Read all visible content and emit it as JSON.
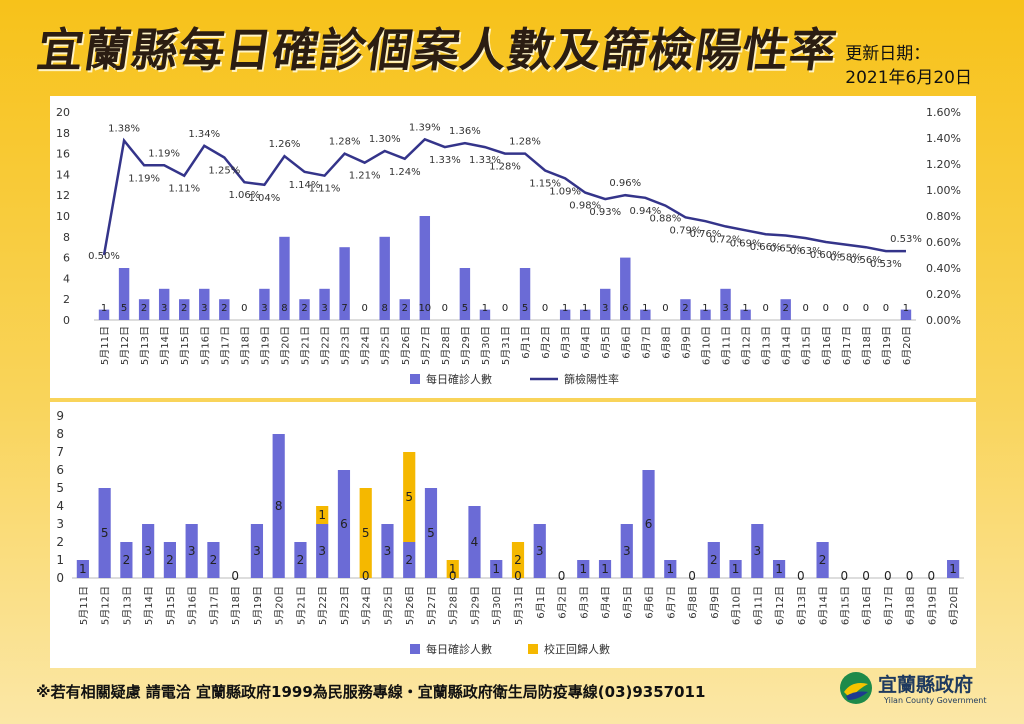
{
  "header": {
    "title": "宜蘭縣每日確診個案人數及篩檢陽性率",
    "update_label": "更新日期：",
    "update_date": "2021年6月20日"
  },
  "footer": {
    "note": "※若有相關疑慮 請電洽  宜蘭縣政府1999為民服務專線・宜蘭縣政府衛生局防疫專線(03)9357011"
  },
  "logo": {
    "name": "宜蘭縣政府",
    "english": "Yilan County Government"
  },
  "colors": {
    "bar": "#6b6bd6",
    "line": "#34348a",
    "correction": "#f5b800"
  },
  "chart_data": [
    {
      "type": "bar",
      "categories": [
        "5月11日",
        "5月12日",
        "5月13日",
        "5月14日",
        "5月15日",
        "5月16日",
        "5月17日",
        "5月18日",
        "5月19日",
        "5月20日",
        "5月21日",
        "5月22日",
        "5月23日",
        "5月24日",
        "5月25日",
        "5月26日",
        "5月27日",
        "5月28日",
        "5月29日",
        "5月30日",
        "5月31日",
        "6月1日",
        "6月2日",
        "6月3日",
        "6月4日",
        "6月5日",
        "6月6日",
        "6月7日",
        "6月8日",
        "6月9日",
        "6月10日",
        "6月11日",
        "6月12日",
        "6月13日",
        "6月14日",
        "6月15日",
        "6月16日",
        "6月17日",
        "6月18日",
        "6月19日",
        "6月20日"
      ],
      "series": [
        {
          "name": "每日確診人數",
          "type": "bar",
          "axis": "left",
          "values": [
            1,
            5,
            2,
            3,
            2,
            3,
            2,
            0,
            3,
            8,
            2,
            3,
            7,
            0,
            8,
            2,
            10,
            0,
            5,
            1,
            0,
            5,
            0,
            1,
            1,
            3,
            6,
            1,
            0,
            2,
            1,
            3,
            1,
            0,
            2,
            0,
            0,
            0,
            0,
            0,
            1
          ]
        },
        {
          "name": "篩檢陽性率",
          "type": "line",
          "axis": "right",
          "values": [
            0.5,
            1.38,
            1.19,
            1.19,
            1.11,
            1.34,
            1.25,
            1.06,
            1.04,
            1.26,
            1.14,
            1.11,
            1.28,
            1.21,
            1.3,
            1.24,
            1.39,
            1.33,
            1.36,
            1.33,
            1.28,
            1.28,
            1.15,
            1.09,
            0.98,
            0.93,
            0.96,
            0.94,
            0.88,
            0.79,
            0.76,
            0.72,
            0.69,
            0.66,
            0.65,
            0.63,
            0.6,
            0.58,
            0.56,
            0.53,
            0.53
          ],
          "labels": [
            "0.50%",
            "1.38%",
            "1.19%",
            "1.19%",
            "1.11%",
            "1.34%",
            "1.25%",
            "1.06%",
            "1.04%",
            "1.26%",
            "1.14%",
            "1.11%",
            "1.28%",
            "1.21%",
            "1.30%",
            "1.24%",
            "1.39%",
            "1.33%",
            "1.36%",
            "1.33%",
            "1.28%",
            "1.28%",
            "1.15%",
            "1.09%",
            "0.98%",
            "0.93%",
            "0.96%",
            "0.94%",
            "0.88%",
            "0.79%",
            "0.76%",
            "0.72%",
            "0.69%",
            "0.66%",
            "0.65%",
            "0.63%",
            "0.60%",
            "0.58%",
            "0.56%",
            "0.53%",
            "0.53%"
          ]
        }
      ],
      "y_left": {
        "min": 0,
        "max": 20,
        "ticks": [
          "0",
          "2",
          "4",
          "6",
          "8",
          "10",
          "12",
          "14",
          "16",
          "18",
          "20"
        ]
      },
      "y_right": {
        "min": 0,
        "max": 1.6,
        "ticks": [
          "0.00%",
          "0.20%",
          "0.40%",
          "0.60%",
          "0.80%",
          "1.00%",
          "1.20%",
          "1.40%",
          "1.60%"
        ]
      },
      "grid": false,
      "legend": "bottom"
    },
    {
      "type": "bar",
      "stacked": true,
      "categories": [
        "5月11日",
        "5月12日",
        "5月13日",
        "5月14日",
        "5月15日",
        "5月16日",
        "5月17日",
        "5月18日",
        "5月19日",
        "5月20日",
        "5月21日",
        "5月22日",
        "5月23日",
        "5月24日",
        "5月25日",
        "5月26日",
        "5月27日",
        "5月28日",
        "5月29日",
        "5月30日",
        "5月31日",
        "6月1日",
        "6月2日",
        "6月3日",
        "6月4日",
        "6月5日",
        "6月6日",
        "6月7日",
        "6月8日",
        "6月9日",
        "6月10日",
        "6月11日",
        "6月12日",
        "6月13日",
        "6月14日",
        "6月15日",
        "6月16日",
        "6月17日",
        "6月18日",
        "6月19日",
        "6月20日"
      ],
      "series": [
        {
          "name": "每日確診人數",
          "values": [
            1,
            5,
            2,
            3,
            2,
            3,
            2,
            0,
            3,
            8,
            2,
            3,
            6,
            0,
            3,
            2,
            5,
            0,
            4,
            1,
            0,
            3,
            0,
            1,
            1,
            3,
            6,
            1,
            0,
            2,
            1,
            3,
            1,
            0,
            2,
            0,
            0,
            0,
            0,
            0,
            1
          ]
        },
        {
          "name": "校正回歸人數",
          "values": [
            0,
            0,
            0,
            0,
            0,
            0,
            0,
            0,
            0,
            0,
            0,
            1,
            0,
            5,
            0,
            5,
            0,
            1,
            0,
            0,
            2,
            0,
            0,
            0,
            0,
            0,
            0,
            0,
            0,
            0,
            0,
            0,
            0,
            0,
            0,
            0,
            0,
            0,
            0,
            0,
            0
          ]
        }
      ],
      "ylim": [
        0,
        9
      ],
      "y_ticks": [
        "0",
        "1",
        "2",
        "3",
        "4",
        "5",
        "6",
        "7",
        "8",
        "9"
      ],
      "grid": false,
      "legend": "bottom"
    }
  ]
}
